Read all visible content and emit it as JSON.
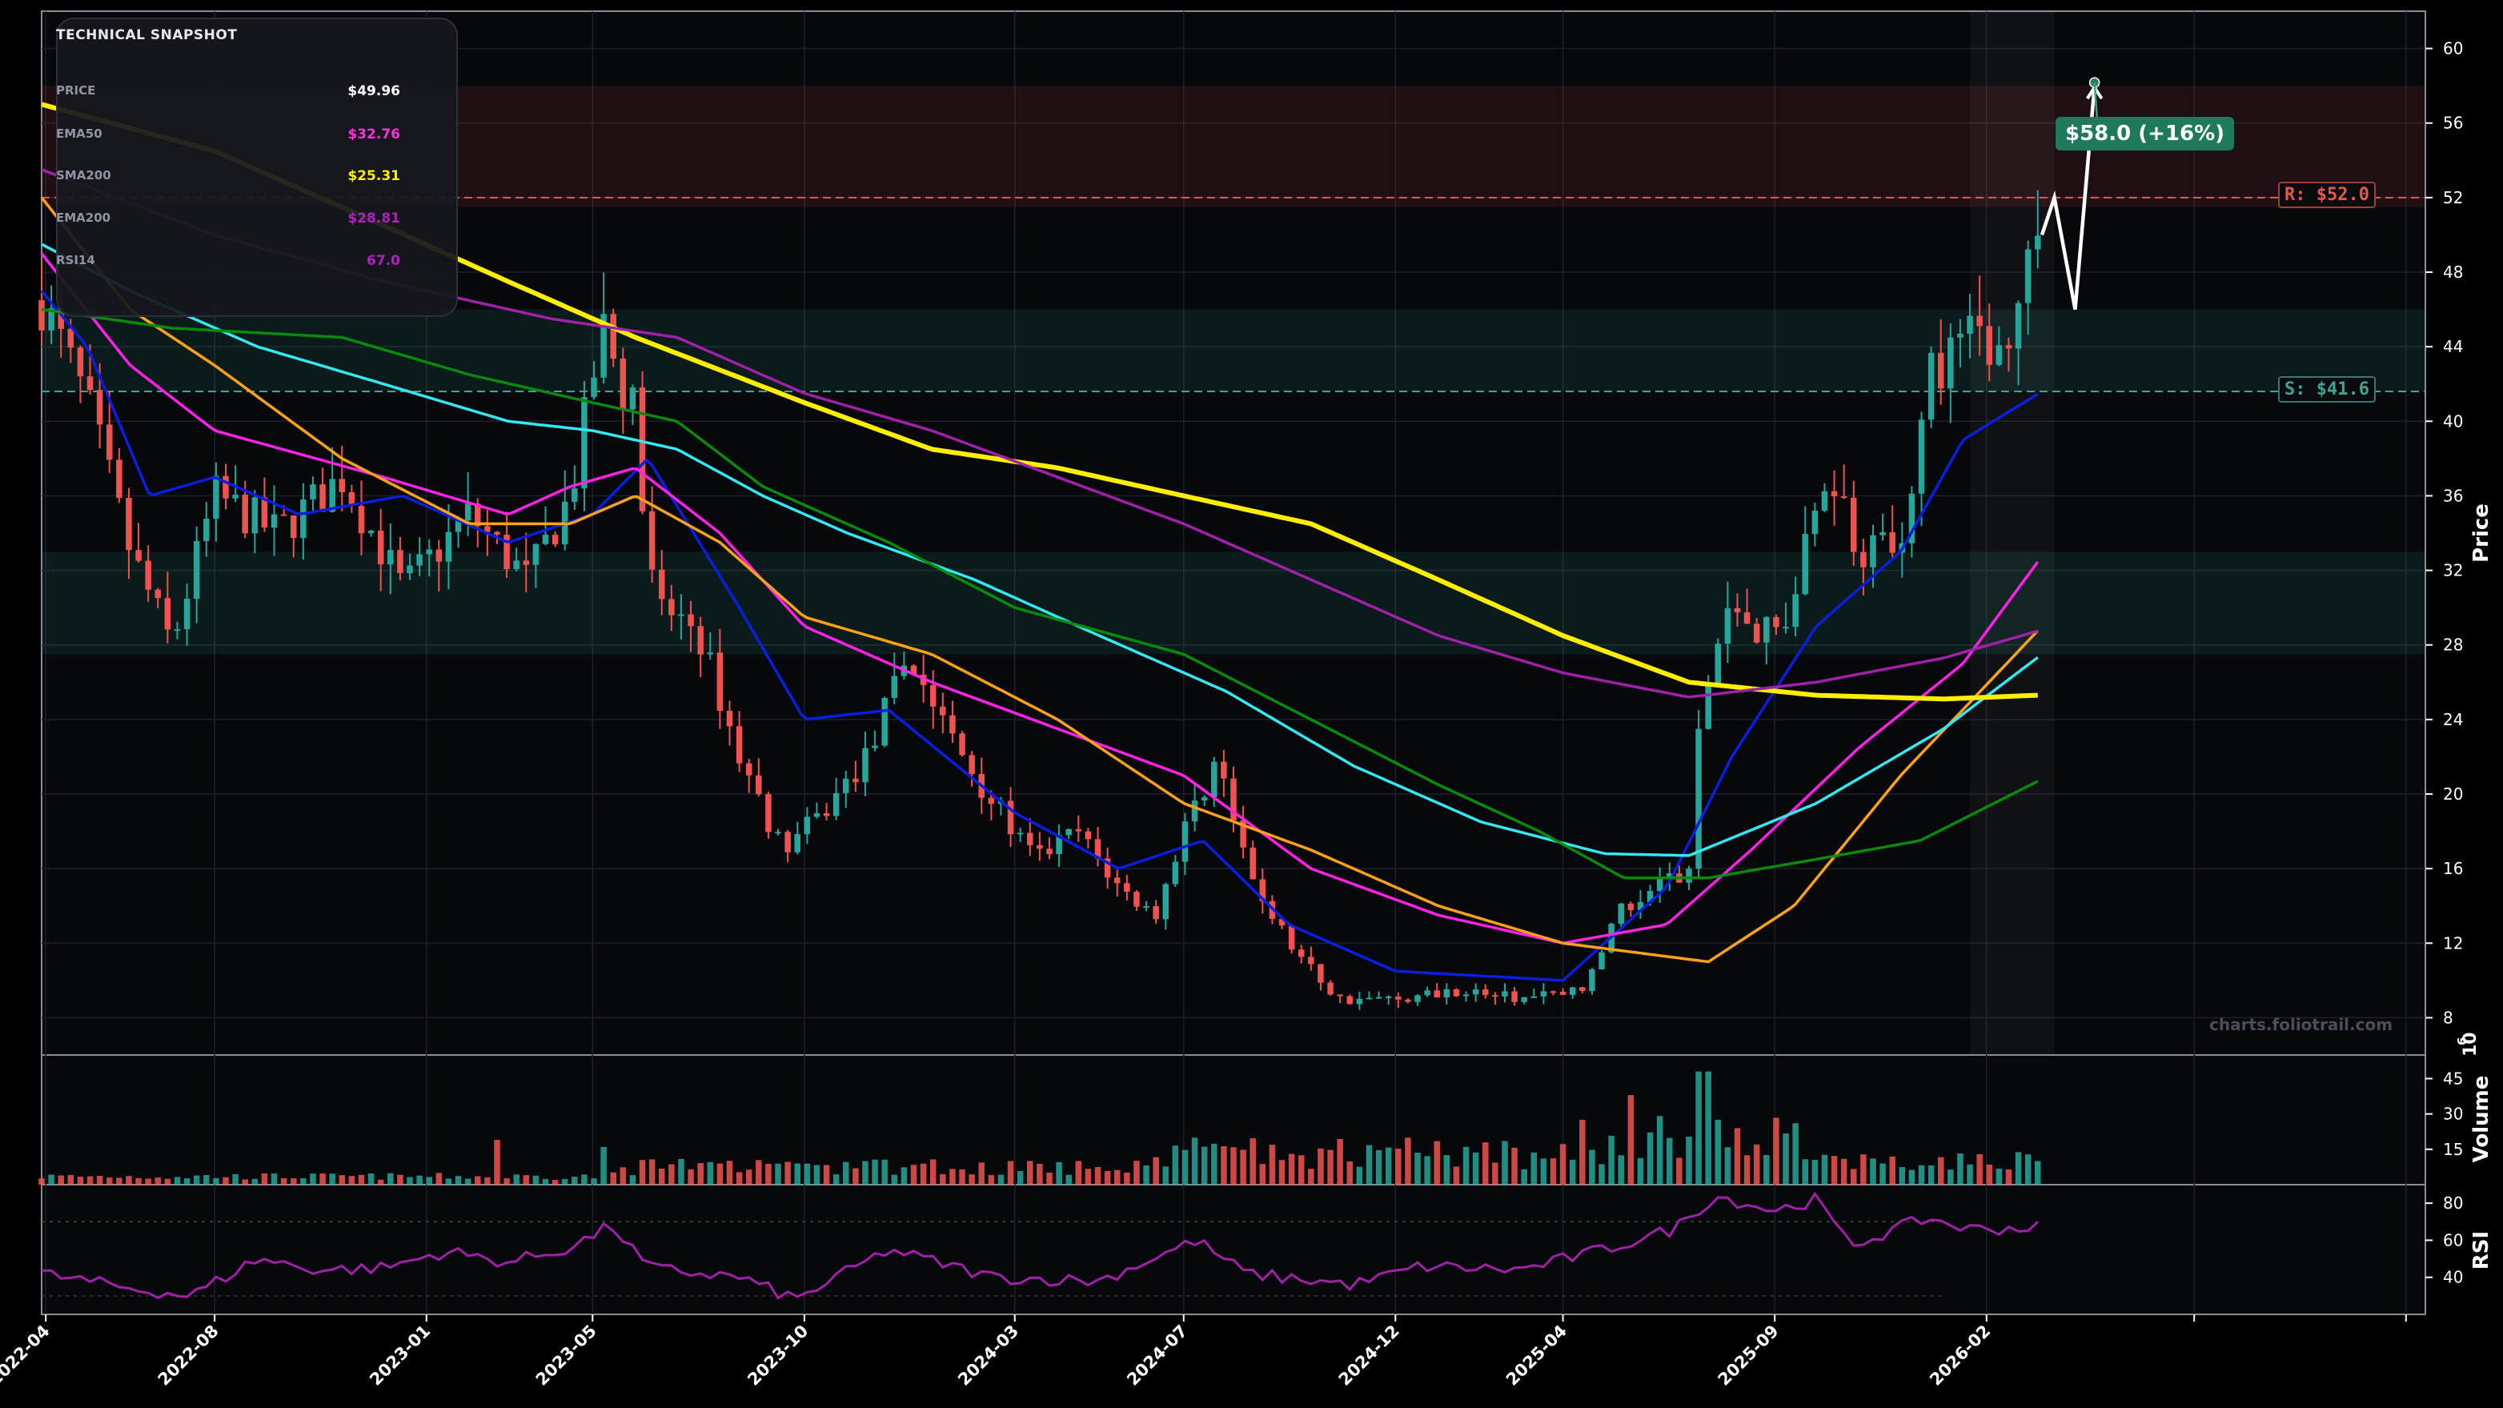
{
  "snapshot": {
    "title": "TECHNICAL SNAPSHOT",
    "rows": [
      {
        "label": "PRICE",
        "value": "$49.96",
        "color": "#ffffff"
      },
      {
        "label": "EMA50",
        "value": "$32.76",
        "color": "#ff33dd"
      },
      {
        "label": "SMA200",
        "value": "$25.31",
        "color": "#ffee00"
      },
      {
        "label": "EMA200",
        "value": "$28.81",
        "color": "#b020c0"
      },
      {
        "label": "RSI14",
        "value": "67.0",
        "color": "#b020c0"
      }
    ]
  },
  "levels": {
    "resistance_label": "R: $52.0",
    "support_label": "S: $41.6",
    "target_label": "$58.0 (+16%)"
  },
  "watermark": "charts.foliotrail.com",
  "colors": {
    "background": "#07080b",
    "candle_up": "#26a69a",
    "candle_down": "#ef5350",
    "resistance": "#e05a50",
    "support": "#3fa592",
    "projection": "#ffffff"
  },
  "chart_data": {
    "type": "candlestick",
    "panels": [
      {
        "name": "price",
        "ylabel": "Price",
        "ylim": [
          6,
          62
        ],
        "yticks": [
          8,
          12,
          16,
          20,
          24,
          28,
          32,
          36,
          40,
          44,
          48,
          52,
          56,
          60
        ],
        "resistance": 52.0,
        "support": 41.6,
        "zones": [
          {
            "kind": "resistance",
            "from": 51.5,
            "to": 58.0
          },
          {
            "kind": "support",
            "from": 41.6,
            "to": 46.0
          },
          {
            "kind": "support",
            "from": 27.5,
            "to": 33.0
          }
        ],
        "target": 58.0,
        "projection": [
          {
            "date": "2026-03-13",
            "value": 50.0
          },
          {
            "date": "2026-03-22",
            "value": 52.0
          },
          {
            "date": "2026-04-06",
            "value": 46.0
          },
          {
            "date": "2026-04-20",
            "value": 58.0
          }
        ]
      },
      {
        "name": "volume",
        "ylabel": "Volume",
        "unit_exponent": "6",
        "yticks": [
          15,
          30,
          45
        ],
        "ylim": [
          0,
          55
        ]
      },
      {
        "name": "rsi",
        "ylabel": "RSI",
        "yticks": [
          40,
          60,
          80
        ],
        "ylim": [
          20,
          90
        ],
        "bands": [
          30,
          70
        ]
      }
    ],
    "x_tick_labels": [
      "2022-04",
      "2022-08",
      "2023-01",
      "2023-05",
      "2023-10",
      "2024-03",
      "2024-07",
      "2024-12",
      "2025-04",
      "2025-09",
      "2026-02"
    ],
    "x_ticks": [
      "2022-04-01",
      "2022-08-01",
      "2023-01-01",
      "2023-05-01",
      "2023-10-01",
      "2024-03-01",
      "2024-07-01",
      "2024-12-01",
      "2025-04-01",
      "2025-09-01",
      "2026-02-01"
    ],
    "x_range": [
      "2022-03-29",
      "2026-12-15"
    ],
    "series_names": [
      "EMA50",
      "SMA200",
      "EMA200"
    ],
    "price_anchors": [
      [
        "2022-03-29",
        46.5
      ],
      [
        "2022-05-01",
        41.0
      ],
      [
        "2022-06-01",
        33.0
      ],
      [
        "2022-07-01",
        28.0
      ],
      [
        "2022-08-01",
        36.0
      ],
      [
        "2022-09-15",
        34.0
      ],
      [
        "2022-11-01",
        37.0
      ],
      [
        "2022-12-15",
        31.0
      ],
      [
        "2023-02-01",
        35.0
      ],
      [
        "2023-03-15",
        31.5
      ],
      [
        "2023-04-15",
        36.0
      ],
      [
        "2023-05-08",
        45.0
      ],
      [
        "2023-06-01",
        40.0
      ],
      [
        "2023-06-15",
        30.0
      ],
      [
        "2023-07-15",
        29.0
      ],
      [
        "2023-08-15",
        22.0
      ],
      [
        "2023-09-15",
        17.0
      ],
      [
        "2023-10-15",
        19.0
      ],
      [
        "2023-11-15",
        22.0
      ],
      [
        "2023-12-15",
        27.5
      ],
      [
        "2024-01-15",
        23.0
      ],
      [
        "2024-02-15",
        19.5
      ],
      [
        "2024-03-15",
        16.5
      ],
      [
        "2024-04-15",
        18.0
      ],
      [
        "2024-05-15",
        15.0
      ],
      [
        "2024-06-10",
        13.5
      ],
      [
        "2024-07-01",
        18.0
      ],
      [
        "2024-07-25",
        22.0
      ],
      [
        "2024-08-15",
        16.0
      ],
      [
        "2024-09-15",
        12.0
      ],
      [
        "2024-10-20",
        9.0
      ],
      [
        "2024-12-01",
        9.0
      ],
      [
        "2025-01-15",
        9.5
      ],
      [
        "2025-03-01",
        9.0
      ],
      [
        "2025-04-15",
        9.5
      ],
      [
        "2025-05-15",
        14.0
      ],
      [
        "2025-06-15",
        15.5
      ],
      [
        "2025-07-01",
        16.0
      ],
      [
        "2025-07-10",
        25.0
      ],
      [
        "2025-08-01",
        30.0
      ],
      [
        "2025-09-01",
        28.5
      ],
      [
        "2025-09-20",
        32.0
      ],
      [
        "2025-10-10",
        38.0
      ],
      [
        "2025-11-01",
        33.0
      ],
      [
        "2025-12-01",
        34.0
      ],
      [
        "2025-12-20",
        42.0
      ],
      [
        "2026-01-15",
        45.0
      ],
      [
        "2026-02-10",
        44.0
      ],
      [
        "2026-03-13",
        49.96
      ]
    ],
    "rsi_anchors": [
      [
        "2022-03-29",
        42
      ],
      [
        "2022-06-01",
        34
      ],
      [
        "2022-07-15",
        30
      ],
      [
        "2022-09-01",
        50
      ],
      [
        "2022-10-15",
        44
      ],
      [
        "2022-12-01",
        45
      ],
      [
        "2023-01-15",
        54
      ],
      [
        "2023-03-01",
        48
      ],
      [
        "2023-04-15",
        56
      ],
      [
        "2023-05-15",
        68
      ],
      [
        "2023-06-10",
        45
      ],
      [
        "2023-08-15",
        40
      ],
      [
        "2023-09-25",
        28
      ],
      [
        "2023-12-01",
        55
      ],
      [
        "2024-02-15",
        40
      ],
      [
        "2024-05-01",
        38
      ],
      [
        "2024-07-10",
        60
      ],
      [
        "2024-08-15",
        42
      ],
      [
        "2024-11-01",
        36
      ],
      [
        "2024-12-20",
        46
      ],
      [
        "2025-03-01",
        44
      ],
      [
        "2025-05-01",
        55
      ],
      [
        "2025-06-20",
        66
      ],
      [
        "2025-07-20",
        84
      ],
      [
        "2025-09-01",
        76
      ],
      [
        "2025-10-01",
        82
      ],
      [
        "2025-10-25",
        57
      ],
      [
        "2025-12-20",
        72
      ],
      [
        "2026-01-20",
        66
      ],
      [
        "2026-03-13",
        67
      ]
    ],
    "ma_anchors": {
      "blue": [
        [
          "2022-03-29",
          47
        ],
        [
          "2022-05-01",
          44
        ],
        [
          "2022-06-15",
          36
        ],
        [
          "2022-08-01",
          37
        ],
        [
          "2022-10-01",
          35
        ],
        [
          "2022-12-15",
          36
        ],
        [
          "2023-03-01",
          33.5
        ],
        [
          "2023-05-01",
          35
        ],
        [
          "2023-06-10",
          38
        ],
        [
          "2023-08-15",
          30
        ],
        [
          "2023-10-01",
          24
        ],
        [
          "2023-12-01",
          24.5
        ],
        [
          "2024-03-01",
          19
        ],
        [
          "2024-05-15",
          16
        ],
        [
          "2024-07-15",
          17.5
        ],
        [
          "2024-09-15",
          13
        ],
        [
          "2024-12-01",
          10.5
        ],
        [
          "2025-04-01",
          10
        ],
        [
          "2025-06-15",
          15
        ],
        [
          "2025-08-01",
          22
        ],
        [
          "2025-10-01",
          29
        ],
        [
          "2025-12-01",
          33
        ],
        [
          "2026-01-15",
          39
        ],
        [
          "2026-03-13",
          41.6
        ]
      ],
      "magenta": [
        [
          "2022-03-29",
          49
        ],
        [
          "2022-06-01",
          43
        ],
        [
          "2022-08-01",
          39.5
        ],
        [
          "2022-12-01",
          37
        ],
        [
          "2023-03-01",
          35
        ],
        [
          "2023-04-15",
          36.5
        ],
        [
          "2023-06-01",
          37.5
        ],
        [
          "2023-08-01",
          34
        ],
        [
          "2023-10-01",
          29
        ],
        [
          "2024-01-01",
          26
        ],
        [
          "2024-04-01",
          23.5
        ],
        [
          "2024-07-01",
          21
        ],
        [
          "2024-10-01",
          16
        ],
        [
          "2025-01-01",
          13.5
        ],
        [
          "2025-04-01",
          12
        ],
        [
          "2025-06-15",
          13
        ],
        [
          "2025-08-15",
          17
        ],
        [
          "2025-11-01",
          22.5
        ],
        [
          "2026-01-15",
          27
        ],
        [
          "2026-03-13",
          32.76
        ]
      ],
      "orange": [
        [
          "2022-03-29",
          52
        ],
        [
          "2022-06-01",
          46
        ],
        [
          "2022-08-01",
          43
        ],
        [
          "2022-11-01",
          38
        ],
        [
          "2023-02-01",
          34.5
        ],
        [
          "2023-04-15",
          34.5
        ],
        [
          "2023-06-01",
          36
        ],
        [
          "2023-08-01",
          33.5
        ],
        [
          "2023-10-01",
          29.5
        ],
        [
          "2024-01-01",
          27.5
        ],
        [
          "2024-04-01",
          24
        ],
        [
          "2024-07-01",
          19.5
        ],
        [
          "2024-10-01",
          17
        ],
        [
          "2025-01-01",
          14
        ],
        [
          "2025-04-01",
          12
        ],
        [
          "2025-07-15",
          11
        ],
        [
          "2025-09-15",
          14
        ],
        [
          "2025-12-01",
          21
        ],
        [
          "2026-03-13",
          29
        ]
      ],
      "cyan": [
        [
          "2022-03-29",
          49.5
        ],
        [
          "2022-06-01",
          47
        ],
        [
          "2022-09-01",
          44
        ],
        [
          "2022-12-01",
          42
        ],
        [
          "2023-03-01",
          40
        ],
        [
          "2023-05-01",
          39.5
        ],
        [
          "2023-07-01",
          38.5
        ],
        [
          "2023-09-01",
          36
        ],
        [
          "2023-11-01",
          34
        ],
        [
          "2024-02-01",
          31.5
        ],
        [
          "2024-05-01",
          28.5
        ],
        [
          "2024-08-01",
          25.5
        ],
        [
          "2024-11-01",
          21.5
        ],
        [
          "2025-02-01",
          18.5
        ],
        [
          "2025-05-01",
          16.8
        ],
        [
          "2025-07-01",
          16.7
        ],
        [
          "2025-10-01",
          19.5
        ],
        [
          "2026-01-01",
          23.5
        ],
        [
          "2026-03-13",
          27.5
        ]
      ],
      "green": [
        [
          "2022-03-29",
          46
        ],
        [
          "2022-07-01",
          45
        ],
        [
          "2022-11-01",
          44.5
        ],
        [
          "2023-02-01",
          42.5
        ],
        [
          "2023-05-01",
          41
        ],
        [
          "2023-07-01",
          40
        ],
        [
          "2023-09-01",
          36.5
        ],
        [
          "2023-12-01",
          33.5
        ],
        [
          "2024-03-01",
          30
        ],
        [
          "2024-07-01",
          27.5
        ],
        [
          "2024-10-01",
          24
        ],
        [
          "2025-01-01",
          20.5
        ],
        [
          "2025-03-15",
          18
        ],
        [
          "2025-05-15",
          15.5
        ],
        [
          "2025-07-15",
          15.5
        ],
        [
          "2025-10-01",
          16.5
        ],
        [
          "2025-12-15",
          17.5
        ],
        [
          "2026-03-13",
          20.8
        ]
      ],
      "yellow": [
        [
          "2022-03-29",
          57
        ],
        [
          "2022-08-01",
          54.5
        ],
        [
          "2022-12-01",
          50.5
        ],
        [
          "2023-03-01",
          47.5
        ],
        [
          "2023-06-01",
          44.5
        ],
        [
          "2023-10-01",
          41
        ],
        [
          "2024-01-01",
          38.5
        ],
        [
          "2024-04-01",
          37.5
        ],
        [
          "2024-07-01",
          36
        ],
        [
          "2024-10-01",
          34.5
        ],
        [
          "2025-01-01",
          31.5
        ],
        [
          "2025-04-01",
          28.5
        ],
        [
          "2025-07-01",
          26
        ],
        [
          "2025-10-01",
          25.3
        ],
        [
          "2026-01-01",
          25.1
        ],
        [
          "2026-03-13",
          25.31
        ]
      ],
      "purple": [
        [
          "2022-03-29",
          53.5
        ],
        [
          "2022-08-01",
          50
        ],
        [
          "2022-12-01",
          47.5
        ],
        [
          "2023-04-01",
          45.5
        ],
        [
          "2023-07-01",
          44.5
        ],
        [
          "2023-10-01",
          41.5
        ],
        [
          "2024-01-01",
          39.5
        ],
        [
          "2024-04-01",
          37
        ],
        [
          "2024-07-01",
          34.5
        ],
        [
          "2024-10-01",
          31.5
        ],
        [
          "2025-01-01",
          28.5
        ],
        [
          "2025-04-01",
          26.5
        ],
        [
          "2025-07-01",
          25.2
        ],
        [
          "2025-10-01",
          26
        ],
        [
          "2026-01-01",
          27.3
        ],
        [
          "2026-03-13",
          28.81
        ]
      ]
    },
    "ma_colors": {
      "blue": "#0a1ee0",
      "magenta": "#ff22e6",
      "orange": "#ffa21a",
      "cyan": "#33e8f0",
      "green": "#0a8a0a",
      "yellow": "#ffee00",
      "purple": "#a020a8"
    }
  }
}
